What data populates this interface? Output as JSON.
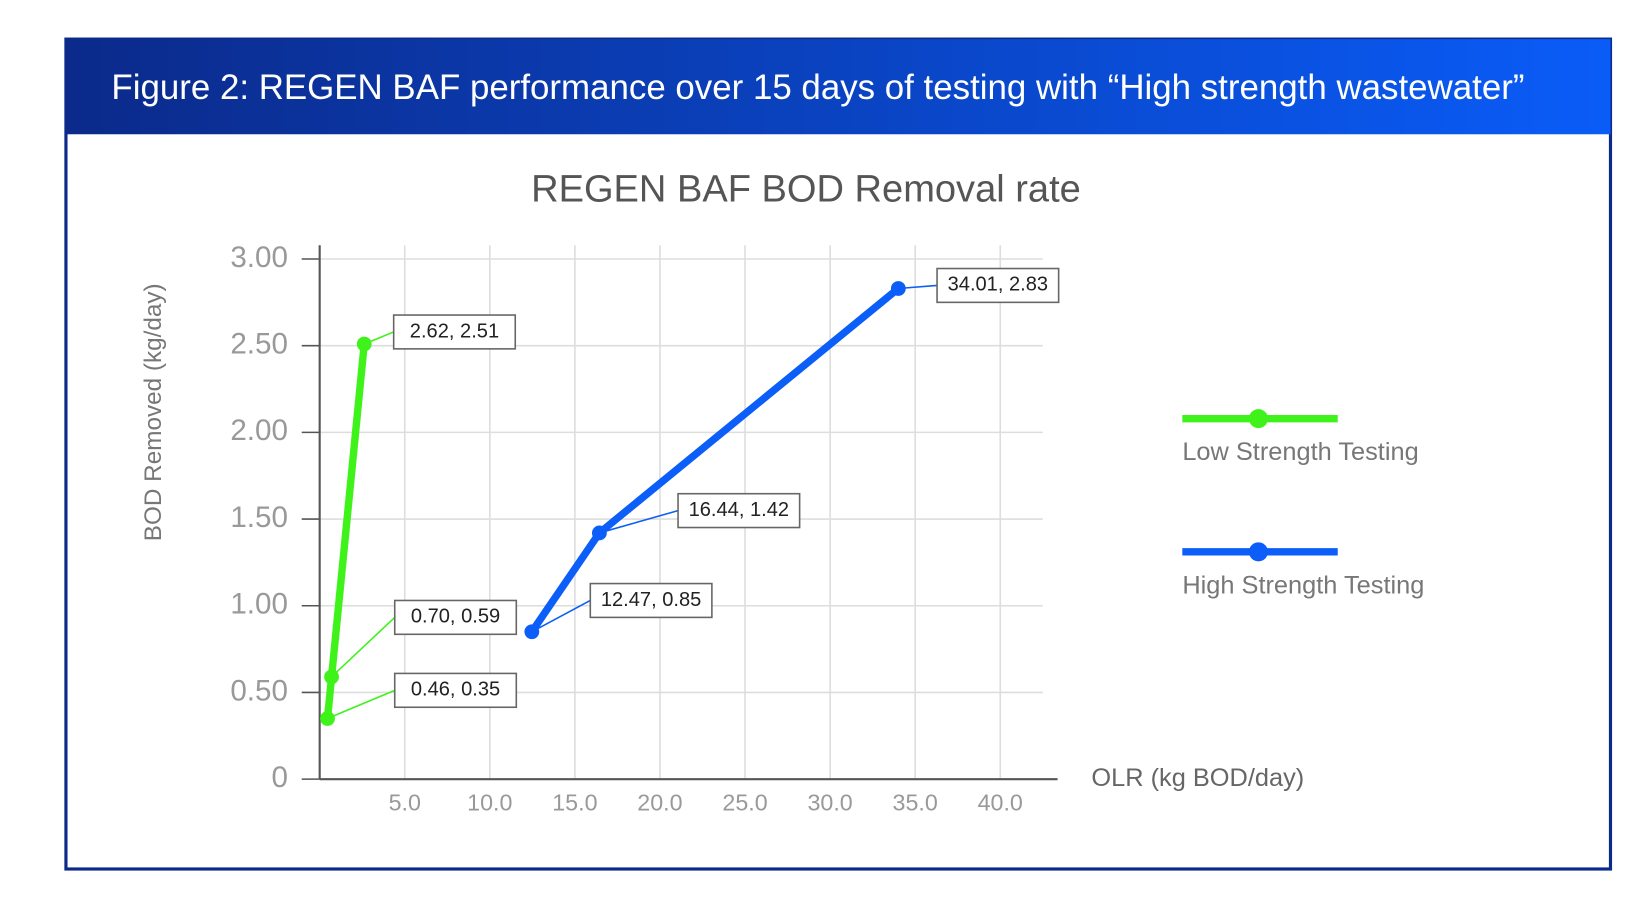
{
  "chart_data": {
    "type": "line",
    "figure_caption": "Figure 2: REGEN BAF performance over 15 days of testing with “High strength wastewater”",
    "title": "REGEN BAF BOD Removal rate",
    "x_label": "OLR (kg BOD/day)",
    "y_label": "BOD Removed (kg/day)",
    "xlim": [
      0,
      42.5
    ],
    "ylim": [
      0,
      3
    ],
    "xticks": [
      {
        "value": 5,
        "label": "5.0"
      },
      {
        "value": 10,
        "label": "10.0"
      },
      {
        "value": 15,
        "label": "15.0"
      },
      {
        "value": 20,
        "label": "20.0"
      },
      {
        "value": 25,
        "label": "25.0"
      },
      {
        "value": 30,
        "label": "30.0"
      },
      {
        "value": 35,
        "label": "35.0"
      },
      {
        "value": 40,
        "label": "40.0"
      }
    ],
    "yticks": [
      0,
      {
        "value": 0.5,
        "label": "0.50"
      },
      {
        "value": 1,
        "label": "1.00"
      },
      {
        "value": 1.5,
        "label": "1.50"
      },
      {
        "value": 2,
        "label": "2.00"
      },
      {
        "value": 2.5,
        "label": "2.50"
      },
      {
        "value": 3,
        "label": "3.00"
      }
    ],
    "grid": true,
    "legend": "right",
    "series": [
      {
        "name": "Low Strength Testing",
        "color": "#3ff21a",
        "x": [
          0.46,
          0.7,
          2.62
        ],
        "values": [
          0.35,
          0.59,
          2.51
        ],
        "value_labels": [
          "0.46, 0.35",
          "0.70, 0.59",
          "2.62, 2.51"
        ]
      },
      {
        "name": "High Strength Testing",
        "color": "#0b5ef7",
        "x": [
          12.47,
          16.44,
          34.01
        ],
        "values": [
          0.85,
          1.42,
          2.83
        ],
        "value_labels": [
          "12.47, 0.85",
          "16.44, 1.42",
          "34.01, 2.83"
        ]
      }
    ]
  }
}
